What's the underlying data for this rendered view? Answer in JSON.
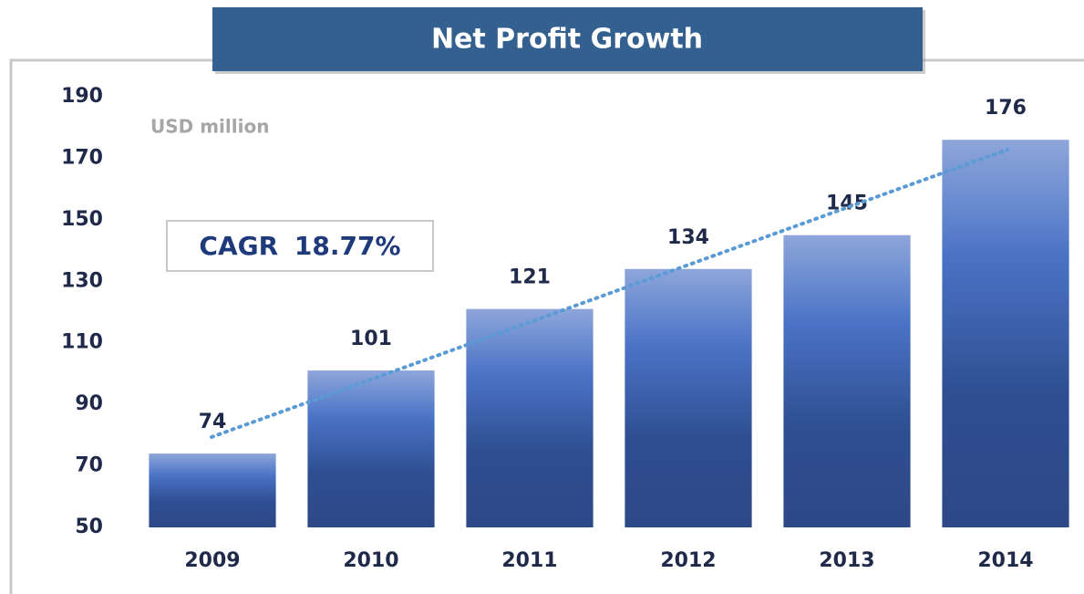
{
  "chart_data": {
    "type": "bar",
    "title": "Net Profit Growth",
    "y_label": "USD million",
    "annotation": "CAGR 18.77%",
    "categories": [
      "2009",
      "2010",
      "2011",
      "2012",
      "2013",
      "2014"
    ],
    "values": [
      74,
      101,
      121,
      134,
      145,
      176
    ],
    "color": "#3f63b0",
    "ylim": [
      50,
      190
    ],
    "yticks": [
      50,
      70,
      90,
      110,
      130,
      150,
      170,
      190
    ],
    "grid": false
  }
}
